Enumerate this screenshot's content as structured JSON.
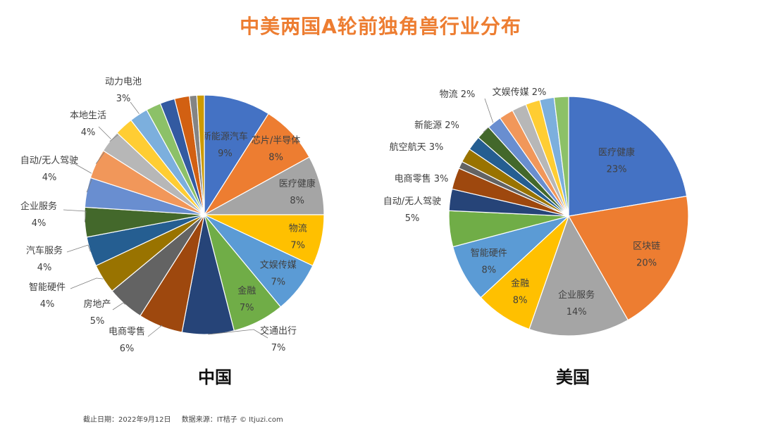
{
  "page_title": "中美两国A轮前独角兽行业分布",
  "footnote": {
    "date": "截止日期：2022年9月12日",
    "source": "数据来源：IT桔子 © Itjuzi.com"
  },
  "chart_data": [
    {
      "type": "pie",
      "title": "中国",
      "slices": [
        {
          "label": "新能源汽车",
          "value": 9,
          "pct": "9%",
          "color": "#4472C4"
        },
        {
          "label": "芯片/半导体",
          "value": 8,
          "pct": "8%",
          "color": "#ED7D31"
        },
        {
          "label": "医疗健康",
          "value": 8,
          "pct": "8%",
          "color": "#A5A5A5"
        },
        {
          "label": "物流",
          "value": 7,
          "pct": "7%",
          "color": "#FFC000"
        },
        {
          "label": "文娱传媒",
          "value": 7,
          "pct": "7%",
          "color": "#5B9BD5"
        },
        {
          "label": "金融",
          "value": 7,
          "pct": "7%",
          "color": "#70AD47"
        },
        {
          "label": "交通出行",
          "value": 7,
          "pct": "7%",
          "color": "#264478"
        },
        {
          "label": "电商零售",
          "value": 6,
          "pct": "6%",
          "color": "#9E480E"
        },
        {
          "label": "房地产",
          "value": 5,
          "pct": "5%",
          "color": "#636363"
        },
        {
          "label": "智能硬件",
          "value": 4,
          "pct": "4%",
          "color": "#997300"
        },
        {
          "label": "汽车服务",
          "value": 4,
          "pct": "4%",
          "color": "#255E91"
        },
        {
          "label": "企业服务",
          "value": 4,
          "pct": "4%",
          "color": "#43682B"
        },
        {
          "label": "自动/无人驾驶",
          "value": 4,
          "pct": "4%",
          "color": "#698ED0"
        },
        {
          "label": "本地生活",
          "value": 4,
          "pct": "4%",
          "color": "#F1975A"
        },
        {
          "label": "动力电池",
          "value": 3,
          "pct": "3%",
          "color": "#B7B7B7"
        },
        {
          "label": "",
          "value": 2.5,
          "pct": "",
          "color": "#FFCD33"
        },
        {
          "label": "",
          "value": 2.5,
          "pct": "",
          "color": "#7CAFDD"
        },
        {
          "label": "",
          "value": 2,
          "pct": "",
          "color": "#8CC168"
        },
        {
          "label": "",
          "value": 2,
          "pct": "",
          "color": "#335AA1"
        },
        {
          "label": "",
          "value": 2,
          "pct": "",
          "color": "#D26012"
        },
        {
          "label": "",
          "value": 1,
          "pct": "",
          "color": "#848484"
        },
        {
          "label": "",
          "value": 1,
          "pct": "",
          "color": "#CC9A00"
        }
      ]
    },
    {
      "type": "pie",
      "title": "美国",
      "slices": [
        {
          "label": "医疗健康",
          "value": 23,
          "pct": "23%",
          "color": "#4472C4"
        },
        {
          "label": "区块链",
          "value": 20,
          "pct": "20%",
          "color": "#ED7D31"
        },
        {
          "label": "企业服务",
          "value": 14,
          "pct": "14%",
          "color": "#A5A5A5"
        },
        {
          "label": "金融",
          "value": 8,
          "pct": "8%",
          "color": "#FFC000"
        },
        {
          "label": "智能硬件",
          "value": 8,
          "pct": "8%",
          "color": "#5B9BD5"
        },
        {
          "label": "自动/无人驾驶",
          "value": 5,
          "pct": "5%",
          "color": "#70AD47"
        },
        {
          "label": "电商零售",
          "value": 3,
          "pct": "3%",
          "color": "#264478"
        },
        {
          "label": "航空航天",
          "value": 3,
          "pct": "3%",
          "color": "#9E480E"
        },
        {
          "label": "",
          "value": 1,
          "pct": "",
          "color": "#636363"
        },
        {
          "label": "新能源",
          "value": 2,
          "pct": "2%",
          "color": "#997300"
        },
        {
          "label": "",
          "value": 2,
          "pct": "",
          "color": "#255E91"
        },
        {
          "label": "物流",
          "value": 2,
          "pct": "2%",
          "color": "#43682B"
        },
        {
          "label": "",
          "value": 2,
          "pct": "",
          "color": "#698ED0"
        },
        {
          "label": "",
          "value": 2,
          "pct": "",
          "color": "#F1975A"
        },
        {
          "label": "",
          "value": 2,
          "pct": "",
          "color": "#B7B7B7"
        },
        {
          "label": "文娱传媒",
          "value": 2,
          "pct": "2%",
          "color": "#FFCD33"
        },
        {
          "label": "",
          "value": 2,
          "pct": "",
          "color": "#7CAFDD"
        },
        {
          "label": "",
          "value": 2,
          "pct": "",
          "color": "#8CC168"
        }
      ]
    }
  ]
}
